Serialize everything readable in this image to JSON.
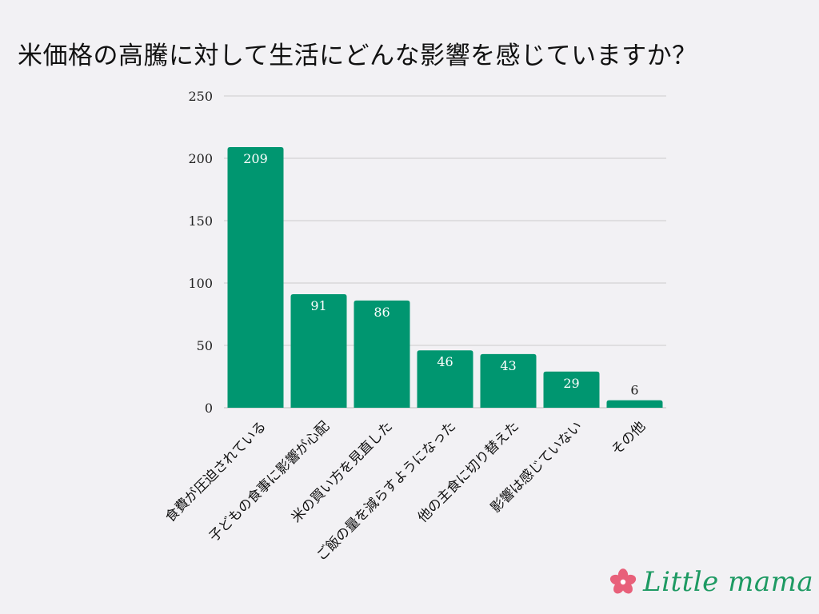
{
  "chart_data": {
    "type": "bar",
    "title": "米価格の高騰に対して生活にどんな影響を感じていますか？",
    "categories": [
      "食費が圧迫されている",
      "子どもの食事に影響が心配",
      "米の買い方を見直した",
      "ご飯の量を減らすようになった",
      "他の主食に切り替えた",
      "影響は感じていない",
      "その他"
    ],
    "values": [
      209,
      91,
      86,
      46,
      43,
      29,
      6
    ],
    "ylim": [
      0,
      250
    ],
    "yticks": [
      0,
      50,
      100,
      150,
      200,
      250
    ],
    "xlabel": "",
    "ylabel": "",
    "grid": true,
    "legend": "none",
    "bar_color": "#009670",
    "grid_color": "#cccccc"
  },
  "logo": {
    "text": "Little mama",
    "flower_color": "#e8607a"
  }
}
